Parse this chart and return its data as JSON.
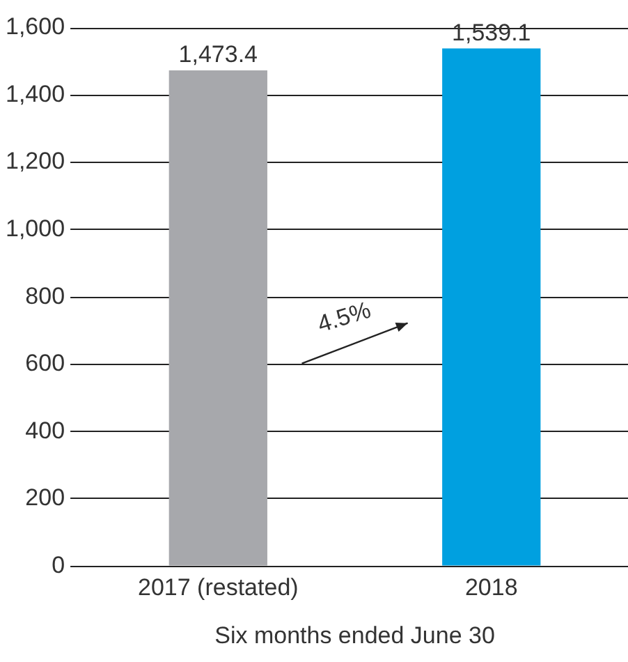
{
  "chart_data": {
    "type": "bar",
    "xlabel": "Six months ended June 30",
    "categories": [
      "2017 (restated)",
      "2018"
    ],
    "values": [
      1473.4,
      1539.1
    ],
    "colors": [
      "#a7a8ac",
      "#00a0e0"
    ],
    "value_labels": [
      "1,473.4",
      "1,539.1"
    ],
    "ylim": [
      0,
      1600
    ],
    "yticks": [
      {
        "value": 0,
        "label": "0"
      },
      {
        "value": 200,
        "label": "200"
      },
      {
        "value": 400,
        "label": "400"
      },
      {
        "value": 600,
        "label": "600"
      },
      {
        "value": 800,
        "label": "800"
      },
      {
        "value": 1000,
        "label": "1,000"
      },
      {
        "value": 1200,
        "label": "1,200"
      },
      {
        "value": 1400,
        "label": "1,400"
      },
      {
        "value": 1600,
        "label": "1,600"
      }
    ],
    "grid": "y",
    "annotations": [
      "4.5%"
    ]
  }
}
